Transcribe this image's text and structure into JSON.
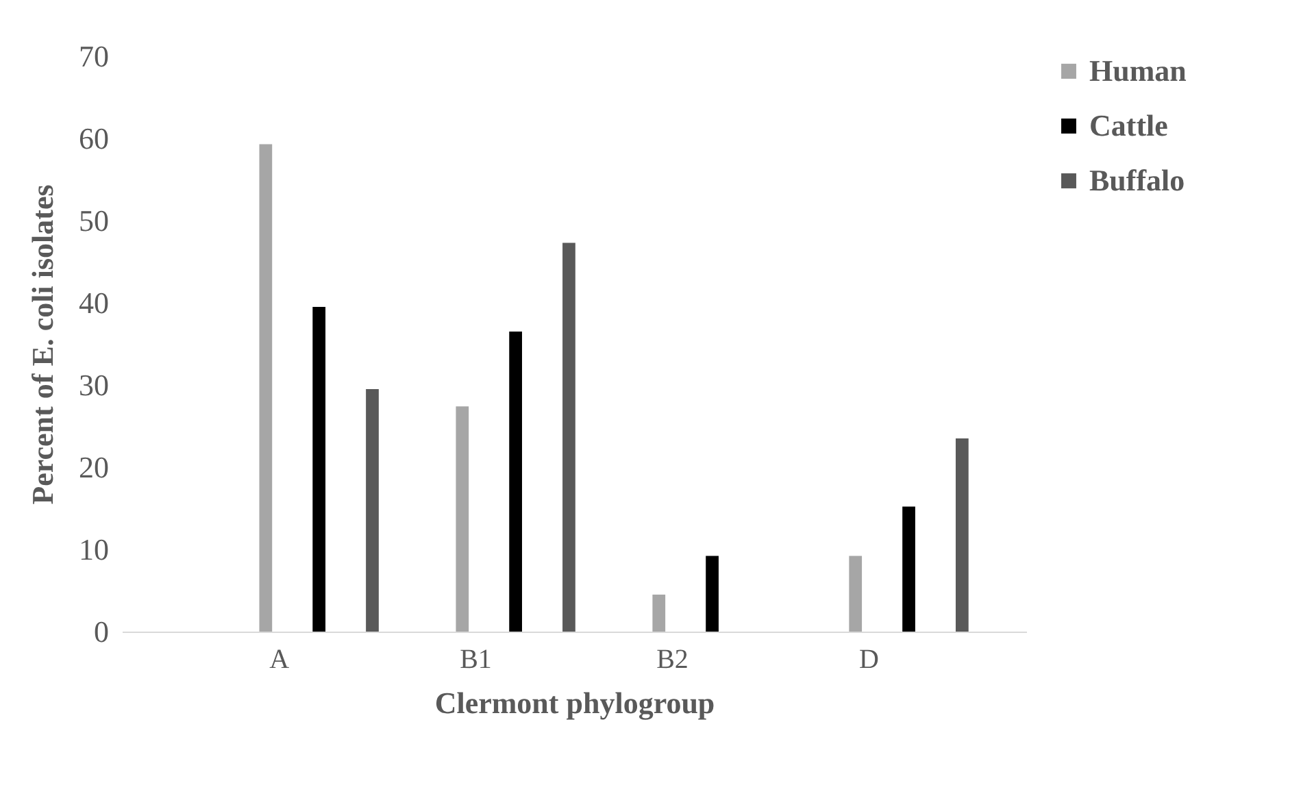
{
  "chart_data": {
    "type": "bar",
    "xlabel": "Clermont phylogroup",
    "ylabel": "Percent of E. coli isolates",
    "categories": [
      "A",
      "B1",
      "B2",
      "D"
    ],
    "series": [
      {
        "name": "Human",
        "color": "#a6a6a6",
        "values": [
          59.3,
          27.4,
          4.5,
          9.2
        ]
      },
      {
        "name": "Cattle",
        "color": "#000000",
        "values": [
          39.5,
          36.5,
          9.2,
          15.2
        ]
      },
      {
        "name": "Buffalo",
        "color": "#595959",
        "values": [
          29.5,
          47.3,
          0,
          23.5
        ]
      }
    ],
    "ylim": [
      0,
      70
    ],
    "yticks": [
      0,
      10,
      20,
      30,
      40,
      50,
      60,
      70
    ],
    "grid": false,
    "legend": "right"
  }
}
